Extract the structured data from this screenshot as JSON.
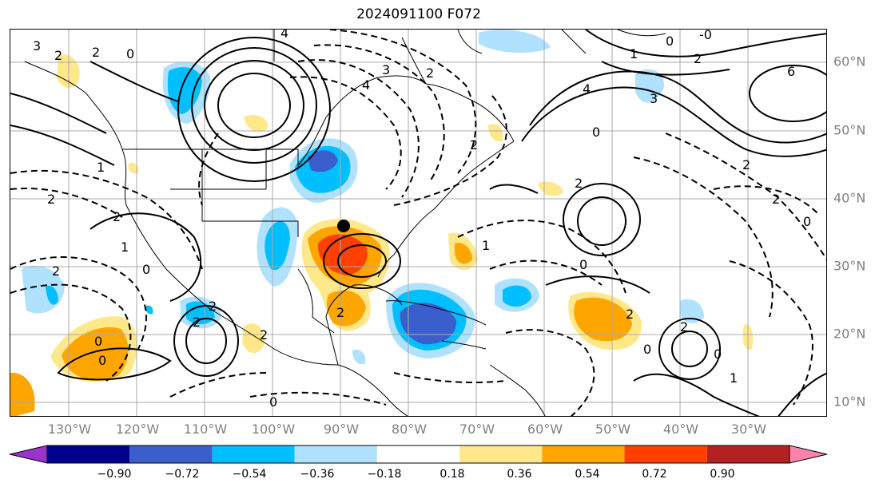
{
  "title": "2024091100 F072",
  "lat_labels": [
    "60°N",
    "50°N",
    "40°N",
    "30°N",
    "20°N",
    "10°N"
  ],
  "lon_labels": [
    "130°W",
    "120°W",
    "110°W",
    "100°W",
    "90°W",
    "80°W",
    "70°W",
    "60°W",
    "50°W",
    "40°W",
    "30°W"
  ],
  "colorbar": {
    "ticks": [
      "−0.90",
      "−0.72",
      "−0.54",
      "−0.36",
      "−0.18",
      "0.18",
      "0.36",
      "0.54",
      "0.72",
      "0.90"
    ],
    "colors": [
      "#9a33cc",
      "#00008b",
      "#3a5fcd",
      "#00bfff",
      "#b0e2ff",
      "#ffffff",
      "#ffe88a",
      "#ffa500",
      "#ff4000",
      "#b22222",
      "#ff82ab"
    ]
  },
  "contour_labels": [
    "3",
    "2",
    "2",
    "0",
    "4",
    "3",
    "2",
    "4",
    "0",
    "-0",
    "2",
    "1",
    "6",
    "4",
    "3",
    "0",
    "2",
    "1",
    "2",
    "2",
    "1",
    "0",
    "2",
    "2",
    "2",
    "2",
    "0",
    "2",
    "0",
    "2",
    "1",
    "0",
    "2",
    "2",
    "2",
    "0",
    "0",
    "2",
    "0",
    "1",
    "0"
  ],
  "marker": "storm-center-dot"
}
